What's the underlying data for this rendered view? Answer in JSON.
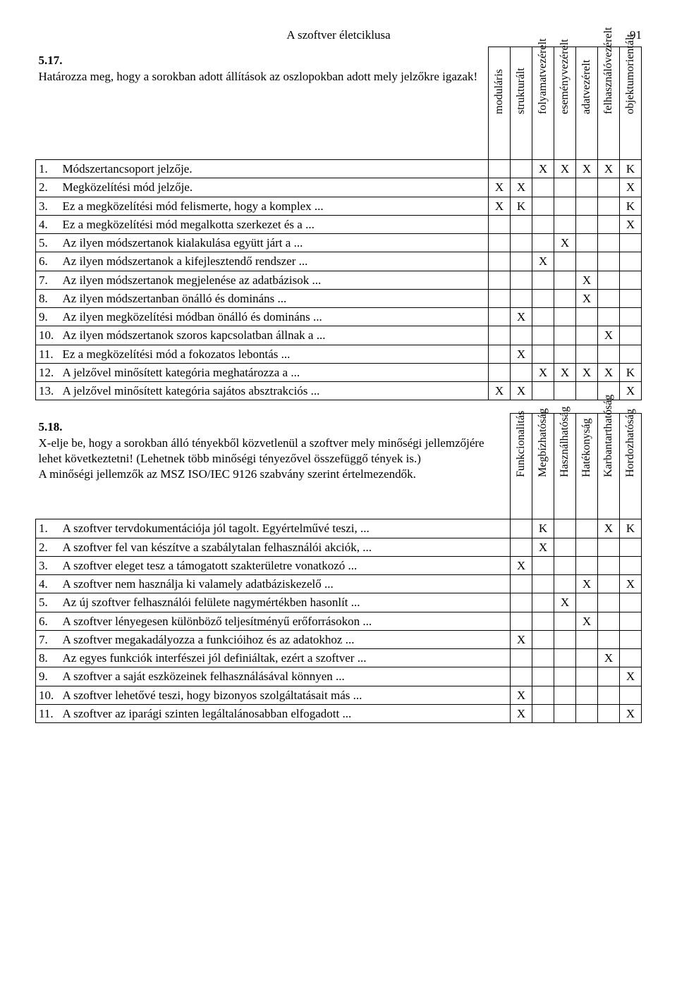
{
  "page": {
    "title": "A szoftver életciklusa",
    "number": "91"
  },
  "ex1": {
    "number": "5.17.",
    "intro": "Határozza meg, hogy a sorokban adott állítások az oszlopokban adott mely jelzőkre igazak!",
    "columns": [
      "moduláris",
      "strukturált",
      "folyamatvezérelt",
      "eseményvezérelt",
      "adatvezérelt",
      "felhasználóvezérelt",
      "objektumorientált"
    ],
    "rows": [
      {
        "n": "1.",
        "t": "Módszertancsoport jelzője.",
        "m": [
          "",
          "",
          "X",
          "X",
          "X",
          "X",
          "K"
        ]
      },
      {
        "n": "2.",
        "t": "Megközelítési mód jelzője.",
        "m": [
          "X",
          "X",
          "",
          "",
          "",
          "",
          "X"
        ]
      },
      {
        "n": "3.",
        "t": "Ez a megközelítési mód felismerte, hogy a komplex ...",
        "m": [
          "X",
          "K",
          "",
          "",
          "",
          "",
          "K"
        ]
      },
      {
        "n": "4.",
        "t": "Ez a megközelítési mód megalkotta szerkezet és a ...",
        "m": [
          "",
          "",
          "",
          "",
          "",
          "",
          "X"
        ]
      },
      {
        "n": "5.",
        "t": "Az ilyen módszertanok kialakulása együtt járt a ...",
        "m": [
          "",
          "",
          "",
          "X",
          "",
          "",
          ""
        ]
      },
      {
        "n": "6.",
        "t": "Az ilyen módszertanok a kifejlesztendő rendszer ...",
        "m": [
          "",
          "",
          "X",
          "",
          "",
          "",
          ""
        ]
      },
      {
        "n": "7.",
        "t": "Az ilyen módszertanok megjelenése az adatbázisok ...",
        "m": [
          "",
          "",
          "",
          "",
          "X",
          "",
          ""
        ]
      },
      {
        "n": "8.",
        "t": "Az ilyen módszertanban önálló és domináns ...",
        "m": [
          "",
          "",
          "",
          "",
          "X",
          "",
          ""
        ]
      },
      {
        "n": "9.",
        "t": "Az ilyen megközelítési módban önálló és domináns ...",
        "m": [
          "",
          "X",
          "",
          "",
          "",
          "",
          ""
        ]
      },
      {
        "n": "10.",
        "t": "Az ilyen módszertanok szoros kapcsolatban állnak a ...",
        "m": [
          "",
          "",
          "",
          "",
          "",
          "X",
          ""
        ]
      },
      {
        "n": "11.",
        "t": "Ez a megközelítési mód a fokozatos lebontás ...",
        "m": [
          "",
          "X",
          "",
          "",
          "",
          "",
          ""
        ]
      },
      {
        "n": "12.",
        "t": "A jelzővel minősített kategória meghatározza a ...",
        "m": [
          "",
          "",
          "X",
          "X",
          "X",
          "X",
          "K"
        ]
      },
      {
        "n": "13.",
        "t": "A jelzővel minősített kategória sajátos absztrakciós ...",
        "m": [
          "X",
          "X",
          "",
          "",
          "",
          "",
          "X"
        ]
      }
    ]
  },
  "ex2": {
    "number": "5.18.",
    "intro": "X-elje be, hogy a sorokban álló tényekből közvetlenül a szoftver mely minőségi jellemzőjére lehet következtetni! (Lehetnek több minőségi tényezővel összefüggő tények is.)\nA minőségi jellemzők az MSZ ISO/IEC 9126 szabvány szerint értelmezendők.",
    "columns": [
      "Funkcionalitás",
      "Megbízhatóság",
      "Használhatóság",
      "Hatékonyság",
      "Karbantarthatóság",
      "Hordozhatóság"
    ],
    "rows": [
      {
        "n": "1.",
        "t": "A szoftver tervdokumentációja jól tagolt. Egyértelművé teszi, ...",
        "m": [
          "",
          "K",
          "",
          "",
          "X",
          "K"
        ]
      },
      {
        "n": "2.",
        "t": "A szoftver fel van készítve a szabálytalan felhasználói akciók, ...",
        "m": [
          "",
          "X",
          "",
          "",
          "",
          ""
        ]
      },
      {
        "n": "3.",
        "t": "A szoftver eleget tesz a támogatott szakterületre vonatkozó ...",
        "m": [
          "X",
          "",
          "",
          "",
          "",
          ""
        ]
      },
      {
        "n": "4.",
        "t": "A szoftver nem használja ki valamely adatbáziskezelő ...",
        "m": [
          "",
          "",
          "",
          "X",
          "",
          "X"
        ]
      },
      {
        "n": "5.",
        "t": "Az új szoftver felhasználói felülete nagymértékben hasonlít ...",
        "m": [
          "",
          "",
          "X",
          "",
          "",
          ""
        ]
      },
      {
        "n": "6.",
        "t": "A szoftver lényegesen különböző teljesítményű erőforrásokon ...",
        "m": [
          "",
          "",
          "",
          "X",
          "",
          ""
        ]
      },
      {
        "n": "7.",
        "t": "A szoftver megakadályozza a funkcióihoz és az adatokhoz ...",
        "m": [
          "X",
          "",
          "",
          "",
          "",
          ""
        ]
      },
      {
        "n": "8.",
        "t": "Az egyes funkciók interfészei jól definiáltak, ezért a szoftver ...",
        "m": [
          "",
          "",
          "",
          "",
          "X",
          ""
        ]
      },
      {
        "n": "9.",
        "t": "A szoftver a saját eszközeinek felhasználásával könnyen ...",
        "m": [
          "",
          "",
          "",
          "",
          "",
          "X"
        ]
      },
      {
        "n": "10.",
        "t": "A szoftver lehetővé teszi, hogy bizonyos szolgáltatásait más ...",
        "m": [
          "X",
          "",
          "",
          "",
          "",
          ""
        ]
      },
      {
        "n": "11.",
        "t": "A szoftver az iparági szinten legáltalánosabban elfogadott ...",
        "m": [
          "X",
          "",
          "",
          "",
          "",
          "X"
        ]
      }
    ]
  }
}
